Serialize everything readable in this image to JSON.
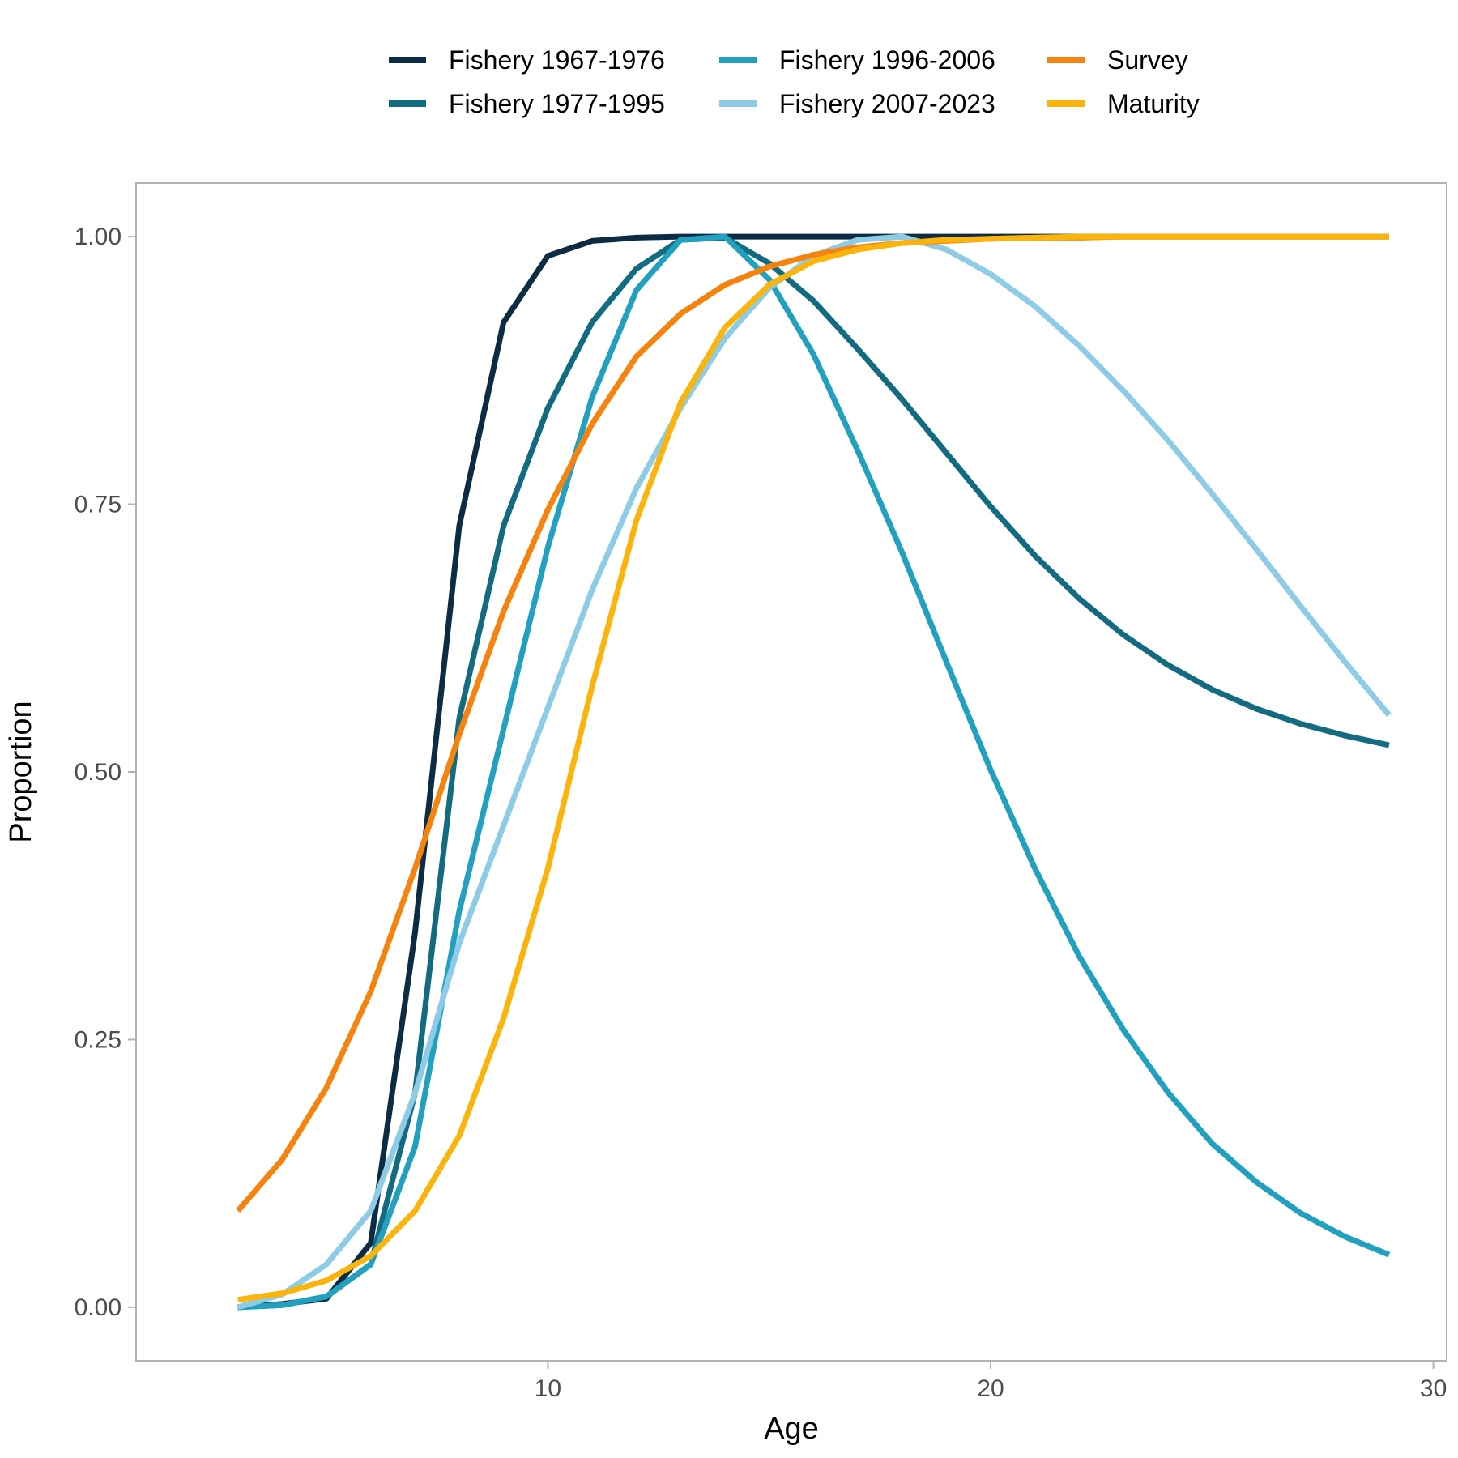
{
  "chart_data": {
    "type": "line",
    "title": "",
    "xlabel": "Age",
    "ylabel": "Proportion",
    "xlim": [
      0.7,
      30.3
    ],
    "ylim": [
      -0.05,
      1.05
    ],
    "x_ticks": [
      10,
      20,
      30
    ],
    "y_ticks": [
      0.0,
      0.25,
      0.5,
      0.75,
      1.0
    ],
    "x_tick_labels": [
      "10",
      "20",
      "30"
    ],
    "y_tick_labels": [
      "0.00",
      "0.25",
      "0.50",
      "0.75",
      "1.00"
    ],
    "grid": false,
    "legend_position": "top",
    "x": [
      3,
      4,
      5,
      6,
      7,
      8,
      9,
      10,
      11,
      12,
      13,
      14,
      15,
      16,
      17,
      18,
      19,
      20,
      21,
      22,
      23,
      24,
      25,
      26,
      27,
      28,
      29
    ],
    "series": [
      {
        "name": "Fishery 1967-1976",
        "color": "#0b2c43",
        "values": [
          0.0,
          0.003,
          0.008,
          0.06,
          0.35,
          0.73,
          0.92,
          0.982,
          0.996,
          0.999,
          1.0,
          1.0,
          1.0,
          1.0,
          1.0,
          1.0,
          1.0,
          1.0,
          1.0,
          1.0,
          1.0,
          1.0,
          1.0,
          1.0,
          1.0,
          1.0,
          1.0
        ]
      },
      {
        "name": "Fishery 1977-1995",
        "color": "#136b82",
        "values": [
          0.0,
          0.002,
          0.01,
          0.04,
          0.2,
          0.55,
          0.73,
          0.84,
          0.92,
          0.97,
          0.997,
          0.999,
          0.975,
          0.94,
          0.895,
          0.848,
          0.798,
          0.748,
          0.702,
          0.662,
          0.628,
          0.6,
          0.577,
          0.559,
          0.545,
          0.534,
          0.525
        ]
      },
      {
        "name": "Fishery 1996-2006",
        "color": "#22a0bf",
        "values": [
          0.0,
          0.002,
          0.01,
          0.04,
          0.15,
          0.37,
          0.54,
          0.71,
          0.85,
          0.95,
          0.997,
          1.0,
          0.96,
          0.89,
          0.8,
          0.705,
          0.603,
          0.502,
          0.41,
          0.328,
          0.259,
          0.201,
          0.153,
          0.117,
          0.088,
          0.066,
          0.049
        ]
      },
      {
        "name": "Fishery 2007-2023",
        "color": "#8dcbe6",
        "values": [
          0.0,
          0.012,
          0.04,
          0.09,
          0.2,
          0.34,
          0.45,
          0.56,
          0.67,
          0.765,
          0.84,
          0.905,
          0.952,
          0.982,
          0.997,
          1.0,
          0.988,
          0.965,
          0.935,
          0.898,
          0.856,
          0.81,
          0.76,
          0.708,
          0.655,
          0.603,
          0.553
        ]
      },
      {
        "name": "Survey",
        "color": "#f6830e",
        "values": [
          0.09,
          0.138,
          0.205,
          0.295,
          0.41,
          0.535,
          0.65,
          0.745,
          0.825,
          0.888,
          0.928,
          0.955,
          0.972,
          0.983,
          0.99,
          0.994,
          0.996,
          0.998,
          0.999,
          0.999,
          1.0,
          1.0,
          1.0,
          1.0,
          1.0,
          1.0,
          1.0
        ]
      },
      {
        "name": "Maturity",
        "color": "#fbb40b",
        "values": [
          0.007,
          0.013,
          0.025,
          0.048,
          0.09,
          0.16,
          0.27,
          0.41,
          0.58,
          0.735,
          0.845,
          0.915,
          0.955,
          0.977,
          0.988,
          0.994,
          0.997,
          0.998,
          0.999,
          1.0,
          1.0,
          1.0,
          1.0,
          1.0,
          1.0,
          1.0,
          1.0
        ]
      }
    ]
  }
}
